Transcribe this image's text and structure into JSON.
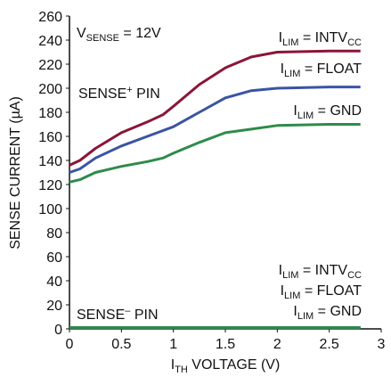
{
  "chart_data": {
    "type": "line",
    "xlabel": [
      "I",
      "TH",
      " VOLTAGE (V)"
    ],
    "ylabel": "SENSE CURRENT (µA)",
    "xlim": [
      0,
      3
    ],
    "xticks": [
      0,
      0.5,
      1,
      1.5,
      2,
      2.5,
      3
    ],
    "ylim": [
      0,
      260
    ],
    "yticks": [
      0,
      20,
      40,
      60,
      80,
      100,
      120,
      140,
      160,
      180,
      200,
      220,
      240,
      260
    ],
    "series": [
      {
        "color": "#8b1538",
        "x": [
          0,
          0.1,
          0.25,
          0.5,
          0.75,
          0.9,
          1.0,
          1.25,
          1.5,
          1.75,
          2.0,
          2.5,
          2.8
        ],
        "values": [
          136,
          140,
          150,
          163,
          172,
          178,
          185,
          203,
          217,
          226,
          230,
          231,
          231
        ]
      },
      {
        "color": "#3a54a4",
        "x": [
          0,
          0.1,
          0.25,
          0.5,
          0.75,
          1.0,
          1.25,
          1.5,
          1.75,
          2.0,
          2.5,
          2.8
        ],
        "values": [
          130,
          133,
          142,
          152,
          160,
          168,
          180,
          192,
          198,
          200,
          201,
          201
        ]
      },
      {
        "color": "#2e8b4a",
        "x": [
          0,
          0.1,
          0.25,
          0.5,
          0.75,
          0.9,
          1.0,
          1.25,
          1.5,
          1.75,
          2.0,
          2.5,
          2.8
        ],
        "values": [
          122,
          124,
          130,
          135,
          139,
          142,
          146,
          155,
          163,
          166,
          169,
          170,
          170
        ]
      },
      {
        "color": "#8b1538",
        "x": [
          0,
          2.8
        ],
        "values": [
          1,
          1
        ]
      },
      {
        "color": "#3a54a4",
        "x": [
          0,
          2.8
        ],
        "values": [
          1,
          1
        ]
      },
      {
        "color": "#2e8b4a",
        "x": [
          0,
          2.8
        ],
        "values": [
          1,
          1
        ]
      }
    ],
    "annotations": [
      {
        "parts": [
          "V",
          "SENSE",
          " = 12V"
        ],
        "script": "sub"
      },
      {
        "parts": [
          "SENSE",
          "+",
          " PIN"
        ],
        "script": "sup"
      },
      {
        "parts": [
          "I",
          "LIM",
          " = INTV",
          "CC"
        ],
        "script": "sub"
      },
      {
        "parts": [
          "I",
          "LIM",
          " = FLOAT"
        ],
        "script": "sub"
      },
      {
        "parts": [
          "I",
          "LIM",
          " = GND"
        ],
        "script": "sub"
      },
      {
        "parts": [
          "I",
          "LIM",
          " = INTV",
          "CC"
        ],
        "script": "sub"
      },
      {
        "parts": [
          "I",
          "LIM",
          " = FLOAT"
        ],
        "script": "sub"
      },
      {
        "parts": [
          "I",
          "LIM",
          " = GND"
        ],
        "script": "sub"
      },
      {
        "parts": [
          "SENSE",
          "–",
          " PIN"
        ],
        "script": "sup"
      }
    ]
  }
}
